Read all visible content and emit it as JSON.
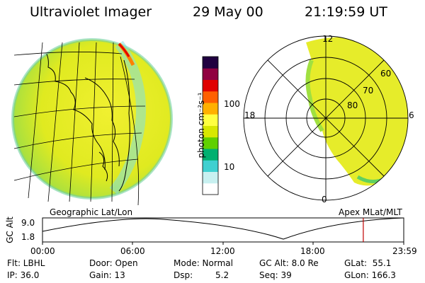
{
  "header": {
    "instrument": "Ultraviolet Imager",
    "date": "29 May 00",
    "time": "21:19:59 UT"
  },
  "colorbar": {
    "label": "photon cm⁻²s⁻¹",
    "ticks": [
      "100",
      "10"
    ],
    "scale": "log",
    "colors": [
      "#ffffff",
      "#c8f0f0",
      "#40d0d0",
      "#00b070",
      "#60d000",
      "#d8e800",
      "#ffff40",
      "#ffb000",
      "#ff6000",
      "#e00000",
      "#900040",
      "#200040"
    ]
  },
  "left_panel": {
    "caption": "Geographic Lat/Lon"
  },
  "right_panel": {
    "caption": "Apex MLat/MLT",
    "mlt_labels": {
      "top": "12",
      "bottom": "0",
      "left": "18",
      "right": "6"
    },
    "mlat_labels": [
      "60",
      "70",
      "80"
    ]
  },
  "altitude_plot": {
    "ylabel": "GC Alt",
    "yticks": [
      "9.0",
      "1.8"
    ],
    "xticks": [
      "00:00",
      "06:00",
      "12:00",
      "18:00",
      "23:59"
    ],
    "marker_color": "#c00000",
    "marker_time_fraction": 0.888
  },
  "status": {
    "flt": "Flt: LBHL",
    "ip": "IP: 36.0",
    "door": "Door: Open",
    "gain": "Gain: 13",
    "mode": "Mode: Normal",
    "dsp_label": "Dsp:",
    "dsp_value": "5.2",
    "gc_alt": "GC Alt: 8.0 Re",
    "seq": "Seq: 39",
    "glat": "GLat:  55.1",
    "glon": "GLon: 166.3"
  }
}
